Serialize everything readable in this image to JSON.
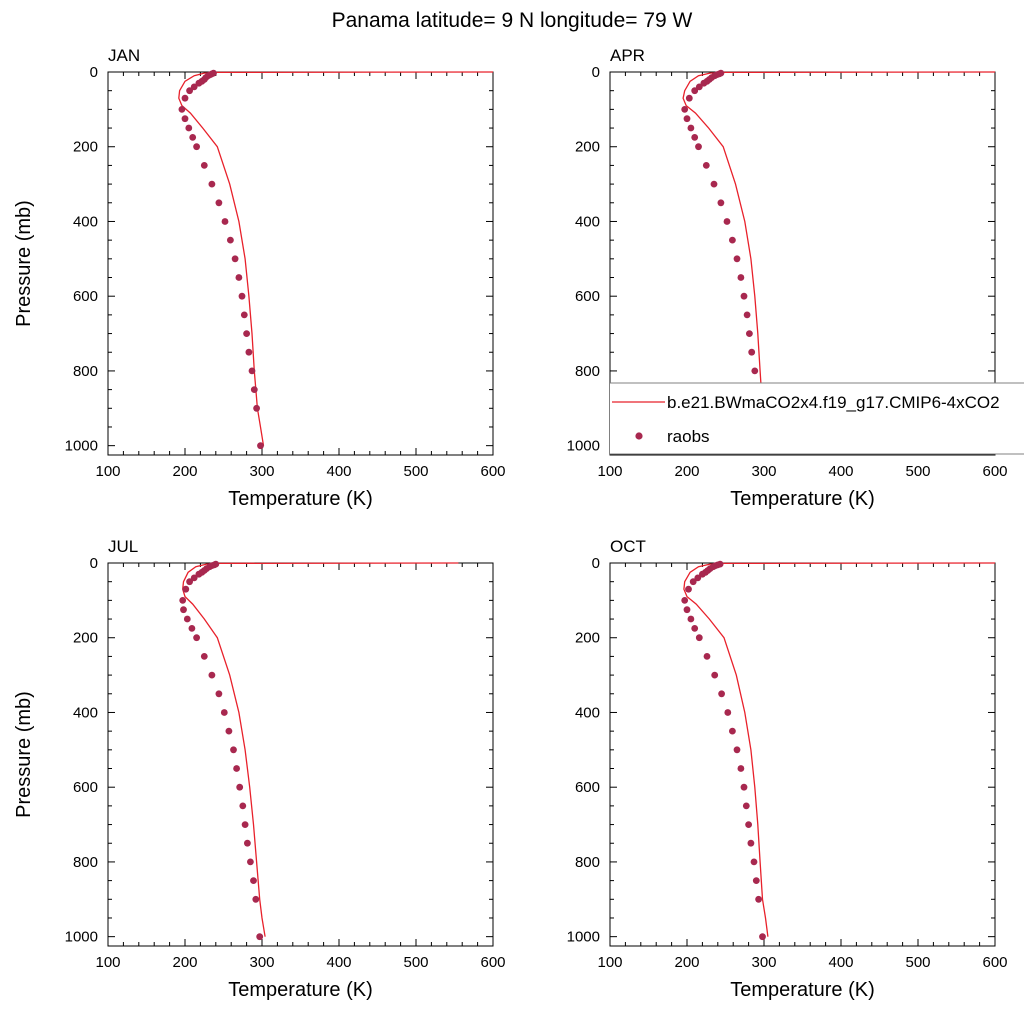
{
  "title": "Panama  latitude= 9 N longitude= 79 W",
  "colors": {
    "model": "#e8212b",
    "obs": "#a8284f",
    "axis": "#000000"
  },
  "legend": {
    "model_label": "b.e21.BWmaCO2x4.f19_g17.CMIP6-4xCO2",
    "obs_label": "raobs",
    "placement": "inside APR panel, lower part"
  },
  "chart_data": [
    {
      "type": "line",
      "panel_title": "JAN",
      "xlabel": "Temperature (K)",
      "ylabel": "Pressure (mb)",
      "xlim": [
        100,
        600
      ],
      "ylim": [
        1025,
        0
      ],
      "xticks": [
        "100",
        "200",
        "300",
        "400",
        "500",
        "600"
      ],
      "yticks": [
        "0",
        "200",
        "400",
        "600",
        "800",
        "1000"
      ],
      "series": [
        {
          "name": "b.e21.BWmaCO2x4.f19_g17.CMIP6-4xCO2",
          "kind": "line",
          "x": [
            600,
            240,
            225,
            212,
            200,
            193,
            192,
            196,
            207,
            223,
            242,
            258,
            270,
            278,
            283,
            287,
            290,
            294,
            298,
            302
          ],
          "y": [
            0,
            1,
            3,
            10,
            25,
            50,
            70,
            90,
            110,
            150,
            200,
            300,
            400,
            500,
            600,
            700,
            800,
            900,
            950,
            1000
          ]
        },
        {
          "name": "raobs",
          "kind": "scatter",
          "x": [
            237,
            235,
            233,
            230,
            227,
            225,
            222,
            218,
            212,
            206,
            200,
            196,
            200,
            205,
            210,
            215,
            225,
            235,
            244,
            252,
            259,
            265,
            270,
            274,
            277,
            280,
            283,
            287,
            290,
            293,
            298
          ],
          "y": [
            3,
            5,
            7,
            10,
            15,
            20,
            25,
            30,
            40,
            50,
            70,
            100,
            125,
            150,
            175,
            200,
            250,
            300,
            350,
            400,
            450,
            500,
            550,
            600,
            650,
            700,
            750,
            800,
            850,
            900,
            1000
          ]
        }
      ]
    },
    {
      "type": "line",
      "panel_title": "APR",
      "xlabel": "Temperature (K)",
      "ylabel": "",
      "xlim": [
        100,
        600
      ],
      "ylim": [
        1025,
        0
      ],
      "xticks": [
        "100",
        "200",
        "300",
        "400",
        "500",
        "600"
      ],
      "yticks": [
        "0",
        "200",
        "400",
        "600",
        "800",
        "1000"
      ],
      "series": [
        {
          "name": "b.e21.BWmaCO2x4.f19_g17.CMIP6-4xCO2",
          "kind": "line",
          "x": [
            600,
            245,
            230,
            215,
            204,
            197,
            195,
            199,
            211,
            228,
            247,
            263,
            275,
            283,
            288,
            292,
            295,
            298,
            301,
            305
          ],
          "y": [
            0,
            1,
            3,
            10,
            25,
            50,
            70,
            90,
            110,
            150,
            200,
            300,
            400,
            500,
            600,
            700,
            800,
            900,
            950,
            1000
          ]
        },
        {
          "name": "raobs",
          "kind": "scatter",
          "x": [
            244,
            242,
            239,
            236,
            232,
            229,
            226,
            222,
            216,
            210,
            203,
            197,
            200,
            205,
            210,
            215,
            225,
            235,
            244,
            252,
            259,
            265,
            270,
            274,
            278,
            281,
            284,
            288,
            291,
            294,
            299
          ],
          "y": [
            3,
            5,
            7,
            10,
            15,
            20,
            25,
            30,
            40,
            50,
            70,
            100,
            125,
            150,
            175,
            200,
            250,
            300,
            350,
            400,
            450,
            500,
            550,
            600,
            650,
            700,
            750,
            800,
            850,
            900,
            1000
          ]
        }
      ]
    },
    {
      "type": "line",
      "panel_title": "JUL",
      "xlabel": "Temperature (K)",
      "ylabel": "Pressure (mb)",
      "xlim": [
        100,
        600
      ],
      "ylim": [
        1025,
        0
      ],
      "xticks": [
        "100",
        "200",
        "300",
        "400",
        "500",
        "600"
      ],
      "yticks": [
        "0",
        "200",
        "400",
        "600",
        "800",
        "1000"
      ],
      "series": [
        {
          "name": "b.e21.BWmaCO2x4.f19_g17.CMIP6-4xCO2",
          "kind": "line",
          "x": [
            555,
            242,
            228,
            214,
            204,
            198,
            197,
            200,
            210,
            225,
            242,
            258,
            270,
            278,
            284,
            289,
            293,
            297,
            300,
            304
          ],
          "y": [
            0,
            1,
            3,
            10,
            25,
            50,
            70,
            90,
            110,
            150,
            200,
            300,
            400,
            500,
            600,
            700,
            800,
            900,
            950,
            1000
          ]
        },
        {
          "name": "raobs",
          "kind": "scatter",
          "x": [
            240,
            238,
            235,
            232,
            228,
            225,
            222,
            218,
            212,
            206,
            201,
            197,
            198,
            203,
            209,
            215,
            225,
            235,
            244,
            251,
            257,
            263,
            267,
            271,
            275,
            278,
            281,
            285,
            289,
            292,
            297
          ],
          "y": [
            3,
            5,
            7,
            10,
            15,
            20,
            25,
            30,
            40,
            50,
            70,
            100,
            125,
            150,
            175,
            200,
            250,
            300,
            350,
            400,
            450,
            500,
            550,
            600,
            650,
            700,
            750,
            800,
            850,
            900,
            1000
          ]
        }
      ]
    },
    {
      "type": "line",
      "panel_title": "OCT",
      "xlabel": "Temperature (K)",
      "ylabel": "",
      "xlim": [
        100,
        600
      ],
      "ylim": [
        1025,
        0
      ],
      "xticks": [
        "100",
        "200",
        "300",
        "400",
        "500",
        "600"
      ],
      "yticks": [
        "0",
        "200",
        "400",
        "600",
        "800",
        "1000"
      ],
      "series": [
        {
          "name": "b.e21.BWmaCO2x4.f19_g17.CMIP6-4xCO2",
          "kind": "line",
          "x": [
            600,
            245,
            230,
            215,
            204,
            197,
            196,
            200,
            212,
            229,
            248,
            264,
            275,
            283,
            288,
            292,
            295,
            298,
            302,
            305
          ],
          "y": [
            0,
            1,
            3,
            10,
            25,
            50,
            70,
            90,
            110,
            150,
            200,
            300,
            400,
            500,
            600,
            700,
            800,
            900,
            950,
            1000
          ]
        },
        {
          "name": "raobs",
          "kind": "scatter",
          "x": [
            243,
            240,
            237,
            234,
            230,
            227,
            224,
            220,
            214,
            208,
            202,
            197,
            200,
            205,
            210,
            216,
            226,
            236,
            245,
            253,
            259,
            265,
            270,
            274,
            277,
            280,
            283,
            287,
            290,
            293,
            298
          ],
          "y": [
            3,
            5,
            7,
            10,
            15,
            20,
            25,
            30,
            40,
            50,
            70,
            100,
            125,
            150,
            175,
            200,
            250,
            300,
            350,
            400,
            450,
            500,
            550,
            600,
            650,
            700,
            750,
            800,
            850,
            900,
            1000
          ]
        }
      ]
    }
  ]
}
